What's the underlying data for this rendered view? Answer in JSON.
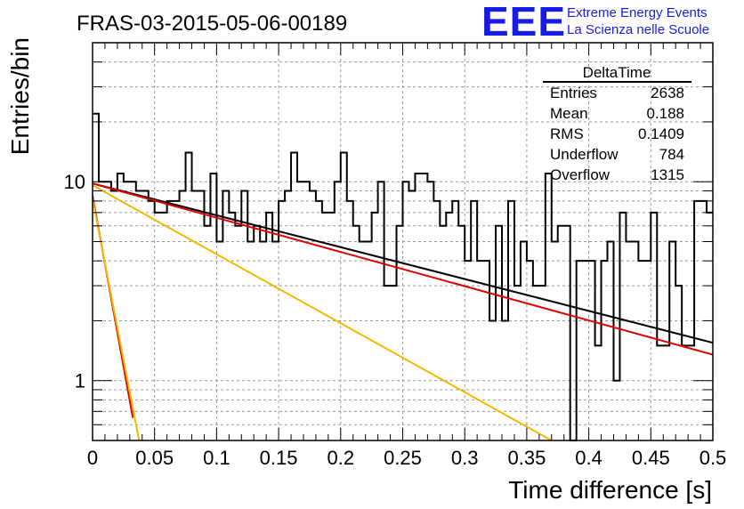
{
  "chart_data": {
    "type": "histogram",
    "title": "FRAS-03-2015-05-06-00189",
    "xlabel": "Time difference [s]",
    "ylabel": "Entries/bin",
    "xlim": [
      0,
      0.5
    ],
    "ylim": [
      0.5,
      50
    ],
    "yscale": "log",
    "grid": true,
    "x_ticks": [
      "0",
      "0.05",
      "0.1",
      "0.15",
      "0.2",
      "0.25",
      "0.3",
      "0.35",
      "0.4",
      "0.45",
      "0.5"
    ],
    "y_ticks": [
      "1",
      "10"
    ],
    "bin_width": 0.005,
    "values": [
      22,
      10,
      10,
      9,
      11,
      10,
      10,
      9,
      9,
      8,
      7,
      7,
      8,
      8,
      9,
      14,
      9,
      9,
      6,
      11,
      5,
      9,
      7,
      6,
      9,
      5,
      6,
      5,
      7,
      5,
      8,
      9,
      14,
      10,
      10,
      9,
      8,
      7,
      7,
      10,
      14,
      8,
      6,
      5,
      5,
      7,
      10,
      3,
      3,
      6,
      10,
      9,
      11,
      11,
      10,
      8,
      6,
      7,
      8,
      6,
      4,
      8,
      4,
      4,
      2,
      6,
      2,
      8,
      3,
      5,
      4,
      3,
      3,
      11,
      5,
      6,
      6,
      0,
      4,
      4,
      4,
      1.5,
      4,
      5,
      1,
      7,
      5,
      5,
      4,
      4,
      7,
      1.5,
      1.5,
      5,
      3,
      1.5,
      1.5,
      8,
      8,
      7
    ],
    "fits": [
      {
        "color": "#000000",
        "y0": 9.8,
        "y_at_0.5": 1.55
      },
      {
        "color": "#e00000",
        "y0": 9.8,
        "y_at_0.5": 1.35
      },
      {
        "color": "#e00000",
        "y0": 8.5,
        "y_at_0.0325": 0.65
      },
      {
        "color": "#f5b800",
        "y0": 8.2,
        "y_at_0.0375": 0.5
      },
      {
        "color": "#f5b800",
        "y0": 9.6,
        "y_at_0.37": 0.5
      }
    ],
    "stats": {
      "title": "DeltaTime",
      "rows": [
        {
          "label": "Entries",
          "value": "2638"
        },
        {
          "label": "Mean",
          "value": "0.188"
        },
        {
          "label": "RMS",
          "value": "0.1409"
        },
        {
          "label": "Underflow",
          "value": "784"
        },
        {
          "label": "Overflow",
          "value": "1315"
        }
      ]
    }
  },
  "logo": {
    "letters": "EEE",
    "line1": "Extreme Energy Events",
    "line2": "La Scienza nelle Scuole",
    "color": "#1a1ae6"
  }
}
